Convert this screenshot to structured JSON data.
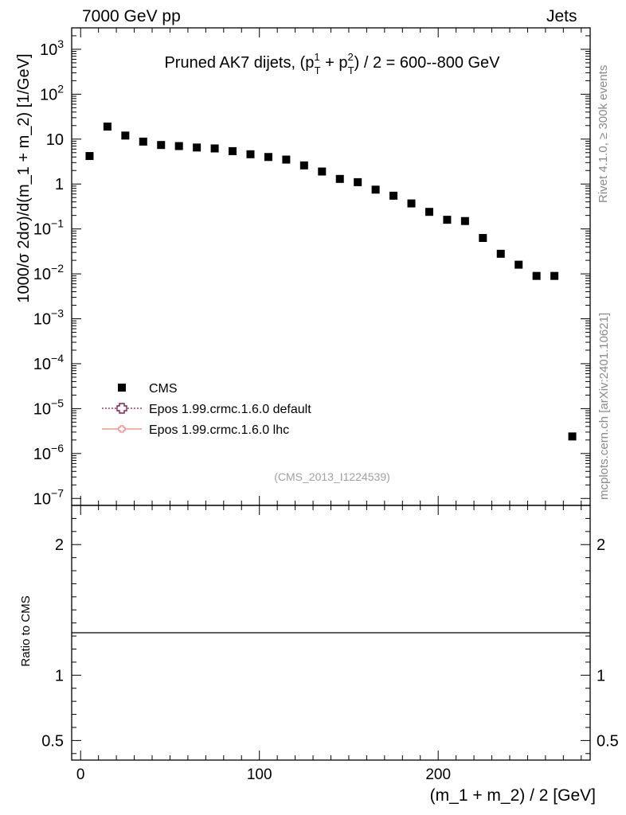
{
  "header": {
    "left": "7000 GeV pp",
    "right": "Jets"
  },
  "side_labels": {
    "rivet": "Rivet 4.1.0, ≥ 300k events",
    "mcplots": "mcplots.cern.ch [arXiv:2401.10621]"
  },
  "chart_data": {
    "type": "scatter",
    "title_parts": {
      "prefix": "Pruned AK7 dijets, (p",
      "sup1": "1",
      "sub": "T",
      "plus": " + p",
      "sup2": "2",
      "suffix": ") / 2 = 600--800 GeV"
    },
    "watermark": "(CMS_2013_I1224539)",
    "ylabel": "1000/σ  2dσ)/d(m_1 + m_2) [1/GeV]",
    "xlabel": "(m_1 + m_2) / 2 [GeV]",
    "ratio_ylabel": "Ratio to CMS",
    "xlim": [
      -5,
      285
    ],
    "ylim_log": [
      7e-08,
      3000
    ],
    "ratio_ylim": [
      0.35,
      2.3
    ],
    "x_ticks": [
      0,
      100,
      200
    ],
    "x_tick_labels": [
      "0",
      "100",
      "200"
    ],
    "y_ticks": [
      {
        "value": 1000,
        "base": "10",
        "exp": "3"
      },
      {
        "value": 100,
        "base": "10",
        "exp": "2"
      },
      {
        "value": 10,
        "base": "10",
        "exp": ""
      },
      {
        "value": 1,
        "base": "1",
        "exp": ""
      },
      {
        "value": 0.1,
        "base": "10",
        "exp": "−1"
      },
      {
        "value": 0.01,
        "base": "10",
        "exp": "−2"
      },
      {
        "value": 0.001,
        "base": "10",
        "exp": "−3"
      },
      {
        "value": 0.0001,
        "base": "10",
        "exp": "−4"
      },
      {
        "value": 1e-05,
        "base": "10",
        "exp": "−5"
      },
      {
        "value": 1e-06,
        "base": "10",
        "exp": "−6"
      },
      {
        "value": 1e-07,
        "base": "10",
        "exp": "−7"
      }
    ],
    "ratio_ticks": [
      {
        "value": 2,
        "label": "2"
      },
      {
        "value": 1,
        "label": "1"
      },
      {
        "value": 0.5,
        "label": "0.5"
      }
    ],
    "legend": [
      {
        "name": "CMS",
        "style": "square",
        "color": "#000000"
      },
      {
        "name": "Epos 1.99.crmc.1.6.0 default",
        "style": "cross-dotted",
        "color": "#8b1a4a"
      },
      {
        "name": "Epos 1.99.crmc.1.6.0 lhc",
        "style": "cross-solid",
        "color": "#f08080"
      }
    ],
    "series": [
      {
        "name": "CMS",
        "x": [
          5,
          15,
          25,
          35,
          45,
          55,
          65,
          75,
          85,
          95,
          105,
          115,
          125,
          135,
          145,
          155,
          165,
          175,
          185,
          195,
          205,
          215,
          225,
          235,
          245,
          255,
          265,
          275
        ],
        "values": [
          4.2,
          19,
          12,
          8.8,
          7.4,
          7.0,
          6.5,
          6.2,
          5.4,
          4.6,
          4.0,
          3.5,
          2.6,
          1.9,
          1.3,
          1.1,
          0.75,
          0.55,
          0.37,
          0.24,
          0.16,
          0.15,
          0.063,
          0.028,
          0.016,
          0.009,
          0.009,
          2.4e-06
        ]
      }
    ]
  }
}
